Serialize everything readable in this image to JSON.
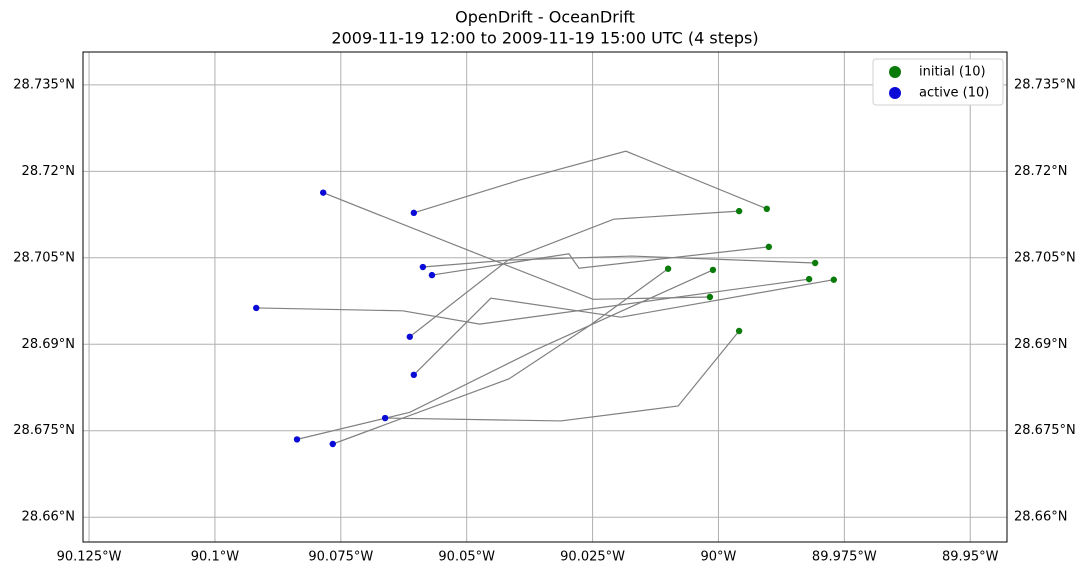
{
  "chart_data": {
    "type": "trajectory",
    "title": "OpenDrift - OceanDrift",
    "subtitle": "2009-11-19 12:00 to 2009-11-19 15:00 UTC (4 steps)",
    "xlim": [
      -90.1262,
      -89.9427
    ],
    "ylim": [
      28.6557,
      28.7407
    ],
    "xticks": [
      {
        "value": -90.125,
        "label": "90.125°W"
      },
      {
        "value": -90.1,
        "label": "90.1°W"
      },
      {
        "value": -90.075,
        "label": "90.075°W"
      },
      {
        "value": -90.05,
        "label": "90.05°W"
      },
      {
        "value": -90.025,
        "label": "90.025°W"
      },
      {
        "value": -90.0,
        "label": "90°W"
      },
      {
        "value": -89.975,
        "label": "89.975°W"
      },
      {
        "value": -89.95,
        "label": "89.95°W"
      }
    ],
    "yticks": [
      {
        "value": 28.66,
        "label": "28.66°N"
      },
      {
        "value": 28.675,
        "label": "28.675°N"
      },
      {
        "value": 28.69,
        "label": "28.69°N"
      },
      {
        "value": 28.705,
        "label": "28.705°N"
      },
      {
        "value": 28.72,
        "label": "28.72°N"
      },
      {
        "value": 28.735,
        "label": "28.735°N"
      }
    ],
    "grid": true,
    "legend": "upper right",
    "line_color": "#808080",
    "series": [
      {
        "name": "initial (10)",
        "color": "#0a7a0a"
      },
      {
        "name": "active (10)",
        "color": "#0b0bd8"
      }
    ],
    "trajectories": [
      {
        "lon": [
          -89.9904,
          -90.0184,
          -90.0394,
          -90.0605
        ],
        "lat": [
          28.7135,
          28.7235,
          28.7185,
          28.7128
        ]
      },
      {
        "lon": [
          -89.9959,
          -90.0208,
          -90.0418,
          -90.0613
        ],
        "lat": [
          28.7131,
          28.7117,
          28.7046,
          28.6913
        ]
      },
      {
        "lon": [
          -89.99,
          -90.0277,
          -90.0297,
          -90.0569
        ],
        "lat": [
          28.7069,
          28.7032,
          28.7057,
          28.702
        ]
      },
      {
        "lon": [
          -89.9808,
          -90.0172,
          -90.0418,
          -90.0587
        ],
        "lat": [
          28.7041,
          28.7053,
          28.7046,
          28.7034
        ]
      },
      {
        "lon": [
          -89.9771,
          -90.0194,
          -90.0452,
          -90.0605
        ],
        "lat": [
          28.7012,
          28.6947,
          28.698,
          28.6847
        ]
      },
      {
        "lon": [
          -89.982,
          -90.0474,
          -90.0627,
          -90.0918
        ],
        "lat": [
          28.7013,
          28.6935,
          28.6958,
          28.6963
        ]
      },
      {
        "lon": [
          -90.01,
          -90.0255,
          -90.0416,
          -90.0766
        ],
        "lat": [
          28.7031,
          28.6933,
          28.684,
          28.6727
        ]
      },
      {
        "lon": [
          -90.0011,
          -90.0364,
          -90.0613,
          -90.0837
        ],
        "lat": [
          28.7029,
          28.689,
          28.6782,
          28.6735
        ]
      },
      {
        "lon": [
          -89.9959,
          -90.008,
          -90.0313,
          -90.0662
        ],
        "lat": [
          28.6923,
          28.6793,
          28.6767,
          28.6772
        ]
      },
      {
        "lon": [
          -90.0017,
          -90.0249,
          -90.0523,
          -90.0785
        ],
        "lat": [
          28.6982,
          28.6978,
          28.7072,
          28.7163
        ]
      }
    ]
  }
}
